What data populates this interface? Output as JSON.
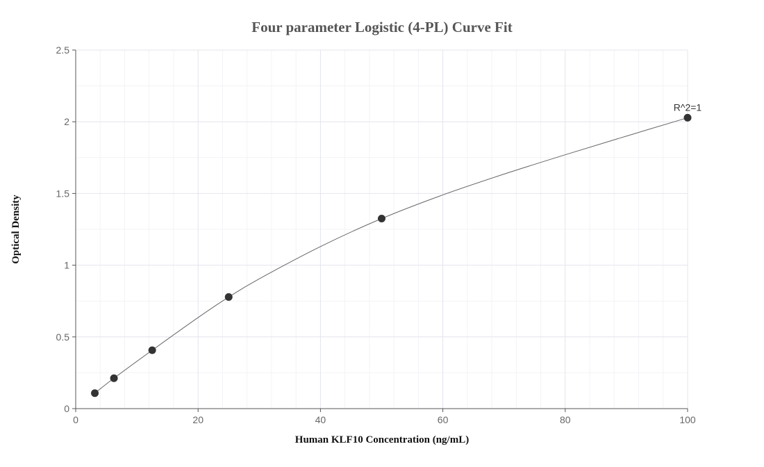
{
  "chart_data": {
    "type": "scatter",
    "title": "Four parameter Logistic (4-PL) Curve Fit",
    "xlabel": "Human KLF10 Concentration (ng/mL)",
    "ylabel": "Optical Density",
    "xlim": [
      0,
      100
    ],
    "ylim": [
      0,
      2.5
    ],
    "x_ticks": [
      0,
      20,
      40,
      60,
      80,
      100
    ],
    "x_tick_labels": [
      "0",
      "20",
      "40",
      "60",
      "80",
      "100"
    ],
    "y_ticks": [
      0,
      0.5,
      1,
      1.5,
      2,
      2.5
    ],
    "y_tick_labels": [
      "0",
      "0.5",
      "1",
      "1.5",
      "2",
      "2.5"
    ],
    "x_minor_step": 4,
    "y_minor_step": 0.25,
    "grid": true,
    "series": [
      {
        "type": "scatter",
        "x": [
          3.125,
          6.25,
          12.5,
          25,
          50,
          100
        ],
        "y": [
          0.108,
          0.212,
          0.407,
          0.778,
          1.325,
          2.028
        ]
      },
      {
        "type": "line",
        "x": [
          3.125,
          6.25,
          12.5,
          20,
          25,
          30,
          40,
          50,
          60,
          70,
          80,
          90,
          100
        ],
        "y": [
          0.108,
          0.212,
          0.407,
          0.635,
          0.778,
          0.905,
          1.13,
          1.325,
          1.49,
          1.635,
          1.77,
          1.9,
          2.028
        ]
      }
    ],
    "annotations": [
      {
        "text": "R^2=1",
        "x": 100,
        "y": 2.028
      }
    ],
    "colors": {
      "marker": "#333333",
      "curve": "#666666",
      "grid_major": "#e4e4ee",
      "grid_minor": "#f3f3f8",
      "axis": "#555555"
    }
  }
}
